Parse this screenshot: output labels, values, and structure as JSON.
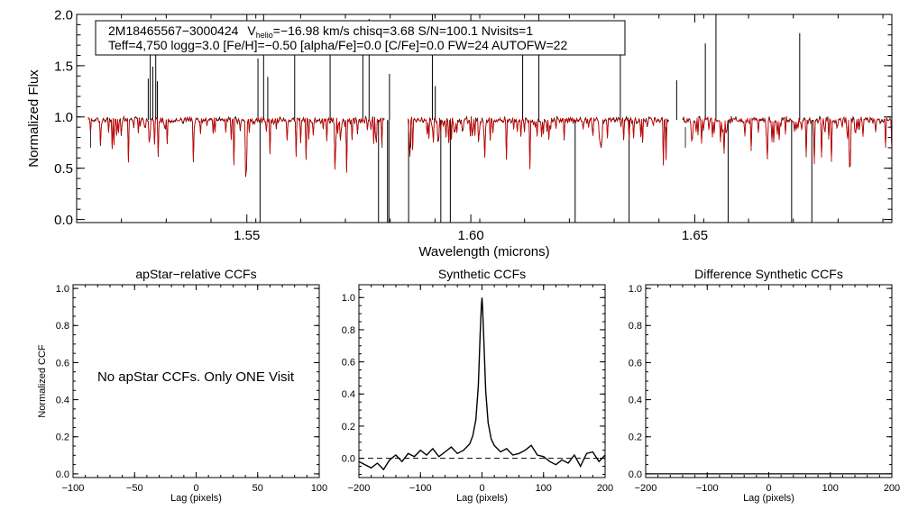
{
  "chart_data": [
    {
      "type": "line",
      "panel": "spectrum",
      "title": "",
      "xlabel": "Wavelength (microns)",
      "ylabel": "Normalized Flux",
      "xlim": [
        1.512,
        1.694
      ],
      "ylim": [
        -0.03,
        2.0
      ],
      "xticks": [
        1.55,
        1.6,
        1.65
      ],
      "xtick_labels": [
        "1.55",
        "1.60",
        "1.65"
      ],
      "yticks": [
        0.0,
        0.5,
        1.0,
        1.5,
        2.0
      ],
      "ytick_labels": [
        "0.0",
        "0.5",
        "1.0",
        "1.5",
        "2.0"
      ],
      "detector_ranges": [
        [
          1.5145,
          1.5808
        ],
        [
          1.586,
          1.6442
        ],
        [
          1.6473,
          1.696
        ]
      ],
      "legend_box": {
        "object_id": "2M18465567−3000424",
        "vhelio_label": "V",
        "vhelio_sub": "helio",
        "line1_rest": "=−16.98 km/s  chisq=3.68  S/N=100.1  Nvisits=1",
        "line2": "Teff=4,750 logg=3.0 [Fe/H]=−0.50 [alpha/Fe]=0.0 [C/Fe]=0.0 FW=24 AUTOFW=22"
      },
      "series": [
        {
          "color": "#000000",
          "continuum": 0.97
        },
        {
          "color": "#d40000",
          "continuum": 0.97
        }
      ]
    },
    {
      "type": "line",
      "panel": "apstar-ccf",
      "title": "apStar−relative CCFs",
      "xlabel": "Lag (pixels)",
      "ylabel": "Normalized CCF",
      "xlim": [
        -100,
        100
      ],
      "ylim": [
        -0.02,
        1.02
      ],
      "xticks": [
        -100,
        -50,
        0,
        50,
        100
      ],
      "xtick_labels": [
        "−100",
        "−50",
        "0",
        "50",
        "100"
      ],
      "yticks": [
        0.0,
        0.2,
        0.4,
        0.6,
        0.8,
        1.0
      ],
      "ytick_labels": [
        "0.0",
        "0.2",
        "0.4",
        "0.6",
        "0.8",
        "1.0"
      ],
      "annotation": "No apStar CCFs.  Only ONE Visit"
    },
    {
      "type": "line",
      "panel": "synthetic-ccf",
      "title": "Synthetic CCFs",
      "xlabel": "Lag (pixels)",
      "ylabel": "",
      "xlim": [
        -200,
        200
      ],
      "ylim": [
        -0.12,
        1.08
      ],
      "xticks": [
        -200,
        -100,
        0,
        100,
        200
      ],
      "xtick_labels": [
        "−200",
        "−100",
        "0",
        "100",
        "200"
      ],
      "yticks": [
        0.0,
        0.2,
        0.4,
        0.6,
        0.8,
        1.0
      ],
      "ytick_labels": [
        "0.0",
        "0.2",
        "0.4",
        "0.6",
        "0.8",
        "1.0"
      ],
      "zero_line": 0.0,
      "series": [
        {
          "x": [
            -200,
            -190,
            -180,
            -170,
            -160,
            -150,
            -140,
            -130,
            -120,
            -110,
            -100,
            -90,
            -80,
            -70,
            -60,
            -50,
            -40,
            -30,
            -20,
            -15,
            -10,
            -6,
            -3,
            -1,
            0,
            1,
            3,
            6,
            10,
            15,
            20,
            30,
            40,
            50,
            60,
            70,
            80,
            90,
            100,
            110,
            120,
            130,
            140,
            150,
            160,
            170,
            180,
            190,
            200
          ],
          "y": [
            -0.02,
            -0.04,
            -0.06,
            -0.03,
            -0.07,
            -0.01,
            0.02,
            -0.02,
            0.03,
            0.01,
            0.05,
            0.02,
            0.06,
            0.01,
            0.04,
            0.07,
            0.03,
            0.05,
            0.09,
            0.14,
            0.24,
            0.45,
            0.78,
            0.95,
            1.0,
            0.93,
            0.74,
            0.42,
            0.22,
            0.12,
            0.08,
            0.04,
            0.06,
            0.02,
            0.03,
            0.05,
            0.08,
            0.02,
            0.01,
            -0.02,
            -0.04,
            -0.01,
            -0.03,
            0.02,
            -0.05,
            0.03,
            0.04,
            -0.02,
            0.02
          ]
        }
      ]
    },
    {
      "type": "line",
      "panel": "difference-ccf",
      "title": "Difference Synthetic CCFs",
      "xlabel": "Lag (pixels)",
      "ylabel": "",
      "xlim": [
        -200,
        200
      ],
      "ylim": [
        -0.02,
        1.02
      ],
      "xticks": [
        -200,
        -100,
        0,
        100,
        200
      ],
      "xtick_labels": [
        "−200",
        "−100",
        "0",
        "100",
        "200"
      ],
      "yticks": [
        0.0,
        0.2,
        0.4,
        0.6,
        0.8,
        1.0
      ],
      "ytick_labels": [
        "0.0",
        "0.2",
        "0.4",
        "0.6",
        "0.8",
        "1.0"
      ],
      "series": [
        {
          "x": [
            -200,
            200
          ],
          "y": [
            0.0,
            0.0
          ]
        }
      ]
    }
  ]
}
